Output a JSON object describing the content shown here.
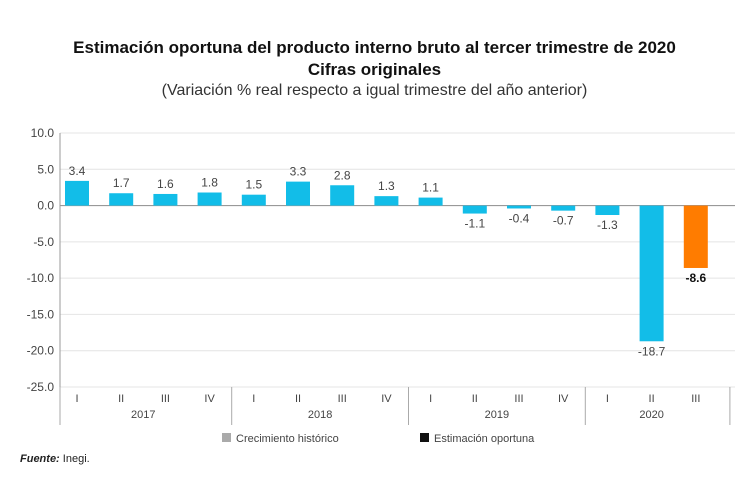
{
  "chart_data": {
    "type": "bar",
    "title": "Estimación oportuna del producto interno bruto al tercer trimestre de 2020",
    "subtitle": "Cifras originales",
    "ylabel": "(Variación % real respecto a igual trimestre del año anterior)",
    "ylim": [
      -25,
      10
    ],
    "yticks": [
      "10.0",
      "5.0",
      "0.0",
      "-5.0",
      "-10.0",
      "-15.0",
      "-20.0",
      "-25.0"
    ],
    "grid": true,
    "years": [
      "2017",
      "2018",
      "2019",
      "2020"
    ],
    "categories": [
      "I",
      "II",
      "III",
      "IV",
      "I",
      "II",
      "III",
      "IV",
      "I",
      "II",
      "III",
      "IV",
      "I",
      "II",
      "III"
    ],
    "category_year": [
      "2017",
      "2017",
      "2017",
      "2017",
      "2018",
      "2018",
      "2018",
      "2018",
      "2019",
      "2019",
      "2019",
      "2019",
      "2020",
      "2020",
      "2020"
    ],
    "values": [
      3.4,
      1.7,
      1.6,
      1.8,
      1.5,
      3.3,
      2.8,
      1.3,
      1.1,
      -1.1,
      -0.4,
      -0.7,
      -1.3,
      -18.7,
      -8.6
    ],
    "labels": [
      "3.4",
      "1.7",
      "1.6",
      "1.8",
      "1.5",
      "3.3",
      "2.8",
      "1.3",
      "1.1",
      "-1.1",
      "-0.4",
      "-0.7",
      "-1.3",
      "-18.7",
      "-8.6"
    ],
    "estimate": [
      false,
      false,
      false,
      false,
      false,
      false,
      false,
      false,
      false,
      false,
      false,
      false,
      false,
      false,
      true
    ],
    "colors": {
      "historic": "#12bde8",
      "estimate": "#ff7c00",
      "legend_historic": "#aaaaaa",
      "legend_estimate": "#111111"
    },
    "legend": [
      {
        "label": "Crecimiento histórico"
      },
      {
        "label": "Estimación oportuna"
      }
    ],
    "legend_placement": "bottom"
  },
  "source": {
    "label": "Fuente:",
    "value": "Inegi."
  }
}
